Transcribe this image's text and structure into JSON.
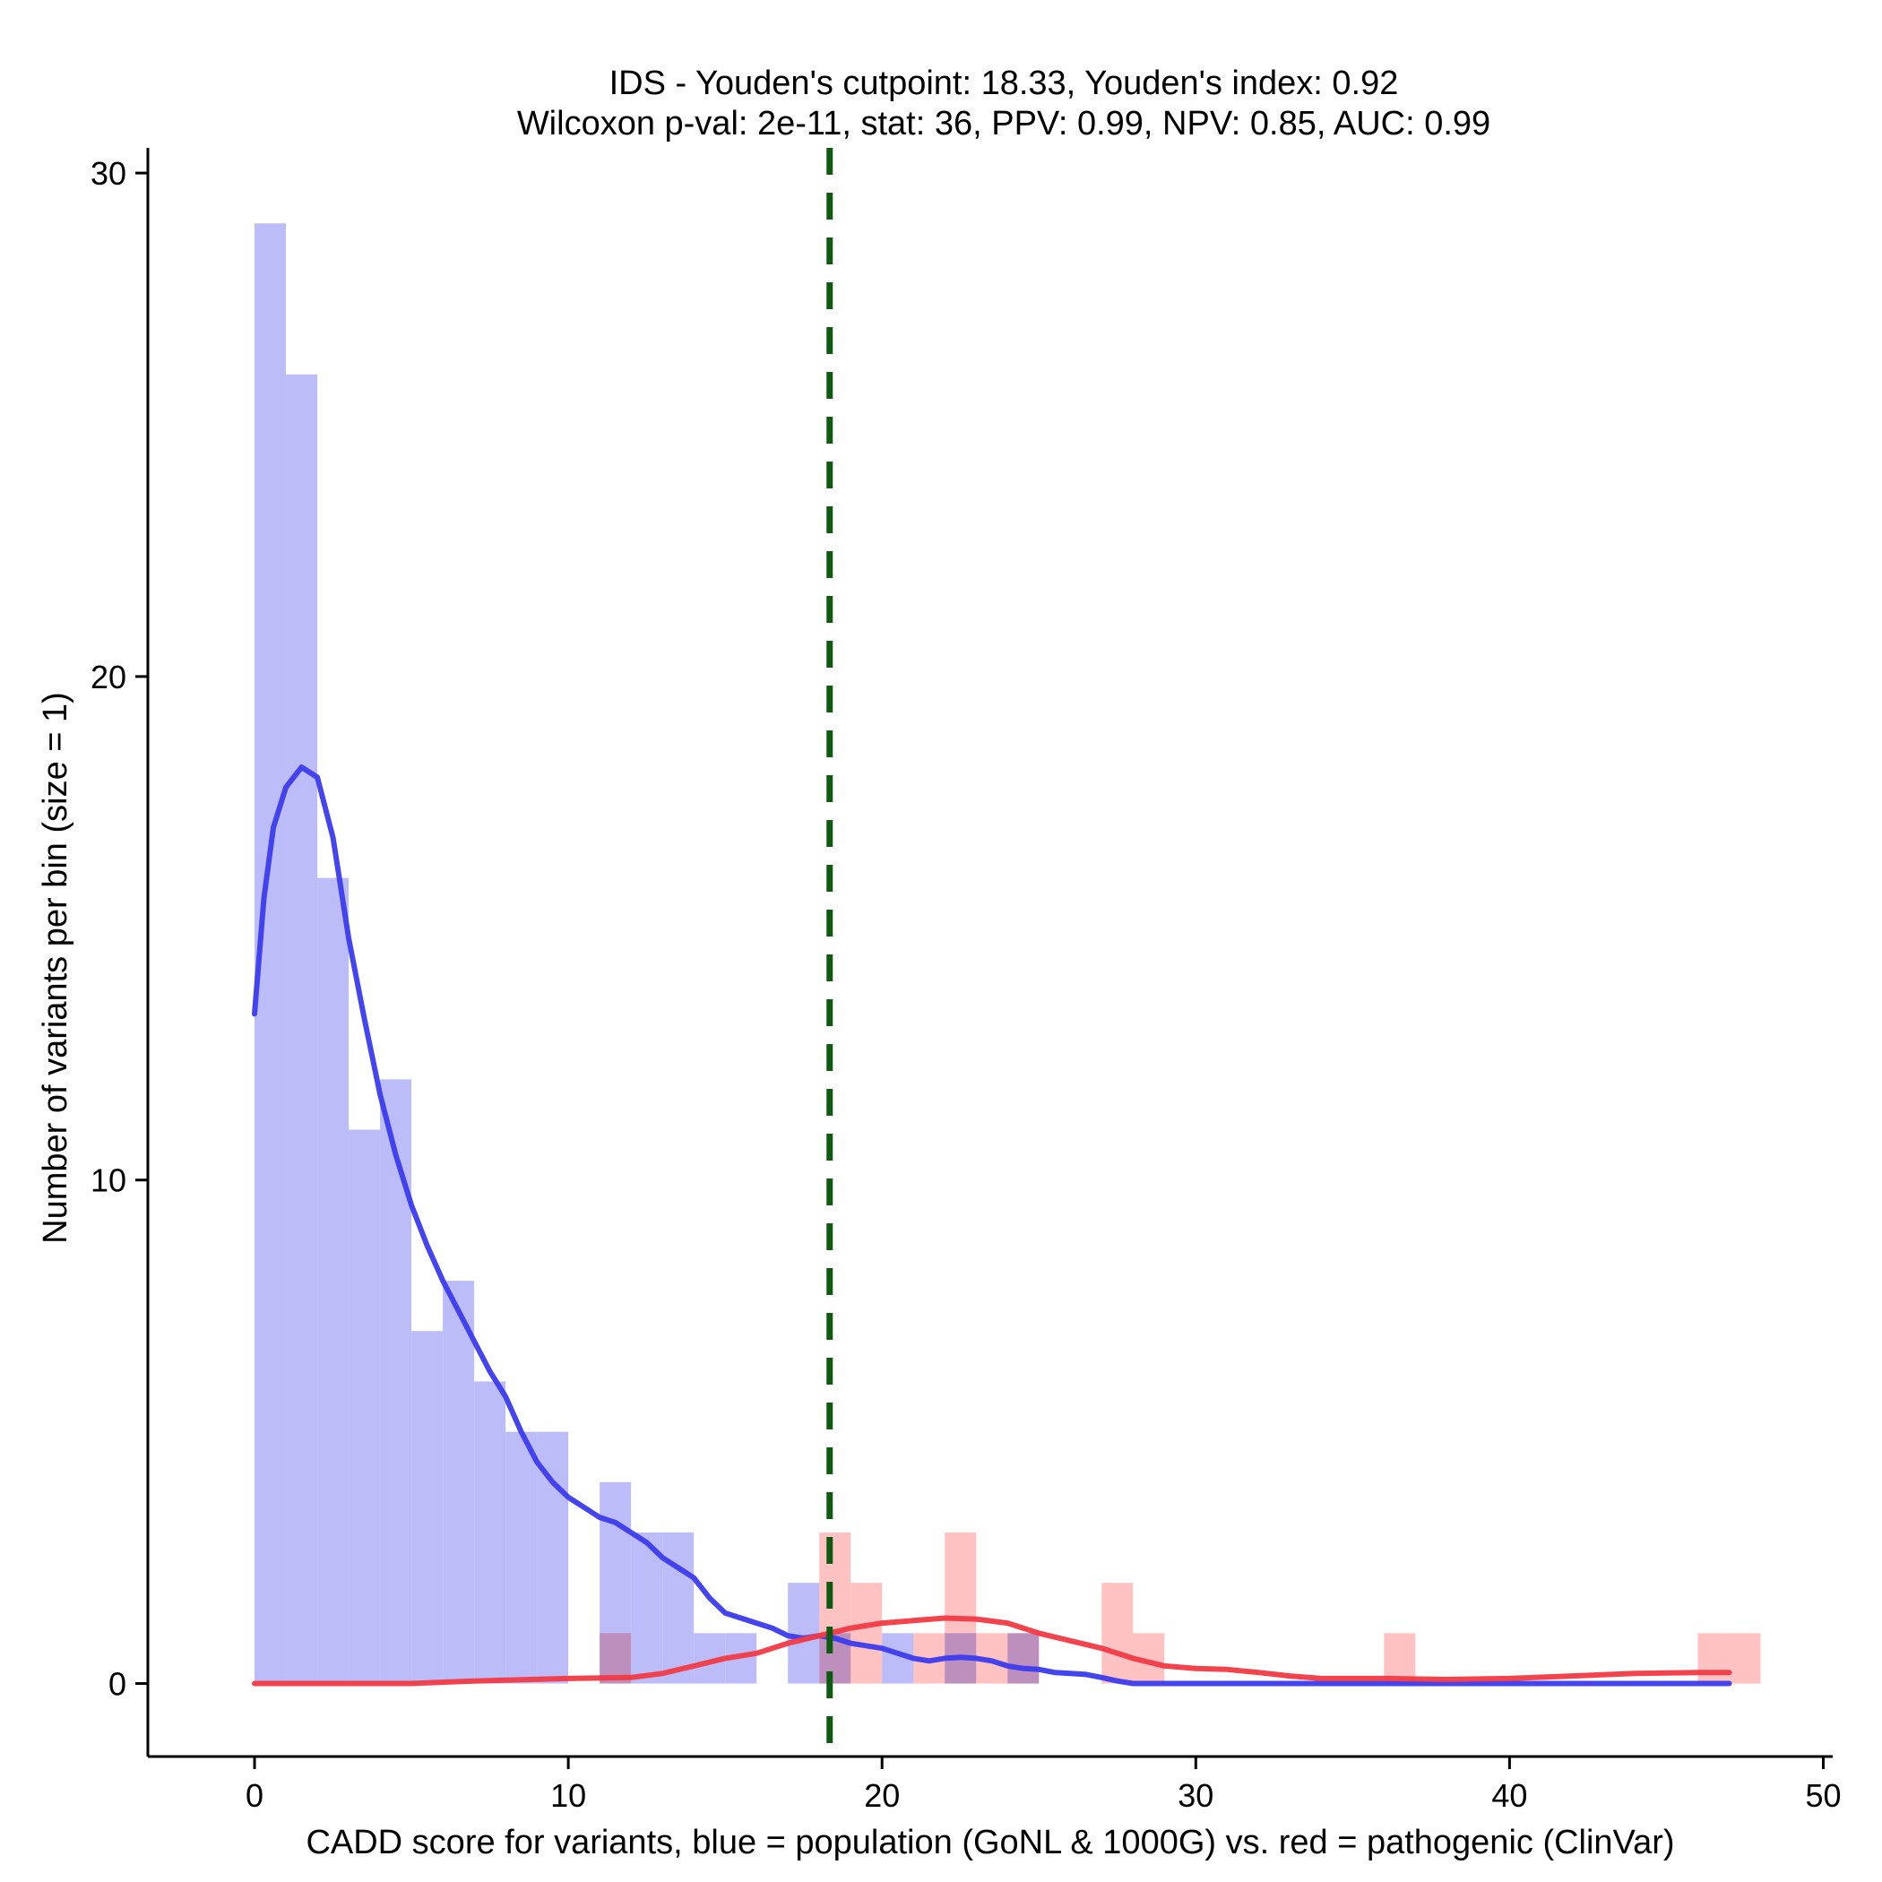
{
  "chart_data": {
    "type": "histogram",
    "title": "IDS - Youden's cutpoint: 18.33, Youden's index: 0.92",
    "subtitle": "Wilcoxon p-val: 2e-11, stat: 36, PPV: 0.99, NPV: 0.85, AUC: 0.99",
    "xlabel": "CADD score for variants, blue = population (GoNL & 1000G) vs. red = pathogenic (ClinVar)",
    "ylabel": "Number of variants per bin (size = 1)",
    "xlim": [
      -3.4,
      50.3
    ],
    "ylim": [
      -1.45,
      30.5
    ],
    "x_ticks": [
      0,
      10,
      20,
      30,
      40,
      50
    ],
    "y_ticks": [
      0,
      10,
      20,
      30
    ],
    "bin_size": 1,
    "cutpoint": 18.33,
    "colors": {
      "population_bar": "#bcbcf9",
      "pathogenic_bar": "#ffbfbf",
      "population_line": "#3b3bee",
      "pathogenic_line": "#f23a44",
      "cutpoint_line": "#0d5a10",
      "axis": "#000000"
    },
    "series": [
      {
        "name": "population",
        "bins": [
          {
            "x0": 0,
            "count": 29
          },
          {
            "x0": 1,
            "count": 26
          },
          {
            "x0": 2,
            "count": 16
          },
          {
            "x0": 3,
            "count": 11
          },
          {
            "x0": 4,
            "count": 12
          },
          {
            "x0": 5,
            "count": 7
          },
          {
            "x0": 6,
            "count": 8
          },
          {
            "x0": 7,
            "count": 6
          },
          {
            "x0": 8,
            "count": 5
          },
          {
            "x0": 9,
            "count": 5
          },
          {
            "x0": 11,
            "count": 4
          },
          {
            "x0": 12,
            "count": 3
          },
          {
            "x0": 13,
            "count": 3
          },
          {
            "x0": 14,
            "count": 1
          },
          {
            "x0": 15,
            "count": 1
          },
          {
            "x0": 17,
            "count": 2
          },
          {
            "x0": 18,
            "count": 1
          },
          {
            "x0": 20,
            "count": 1
          },
          {
            "x0": 22,
            "count": 1
          },
          {
            "x0": 24,
            "count": 1
          }
        ],
        "density_curve": [
          [
            0,
            13.3
          ],
          [
            0.3,
            15.6
          ],
          [
            0.6,
            17.0
          ],
          [
            1.0,
            17.8
          ],
          [
            1.5,
            18.2
          ],
          [
            2.0,
            18.0
          ],
          [
            2.5,
            16.8
          ],
          [
            3.0,
            14.8
          ],
          [
            3.5,
            13.2
          ],
          [
            4.0,
            11.7
          ],
          [
            4.5,
            10.5
          ],
          [
            5.0,
            9.5
          ],
          [
            5.5,
            8.7
          ],
          [
            6.0,
            8.0
          ],
          [
            6.5,
            7.4
          ],
          [
            7.0,
            6.8
          ],
          [
            7.5,
            6.2
          ],
          [
            8.0,
            5.7
          ],
          [
            8.5,
            5.0
          ],
          [
            9.0,
            4.4
          ],
          [
            9.5,
            4.0
          ],
          [
            10.0,
            3.7
          ],
          [
            10.5,
            3.5
          ],
          [
            11.0,
            3.3
          ],
          [
            11.5,
            3.2
          ],
          [
            12.0,
            3.0
          ],
          [
            12.5,
            2.8
          ],
          [
            13.0,
            2.5
          ],
          [
            13.5,
            2.3
          ],
          [
            14.0,
            2.1
          ],
          [
            14.5,
            1.7
          ],
          [
            15.0,
            1.4
          ],
          [
            15.5,
            1.3
          ],
          [
            16.0,
            1.2
          ],
          [
            16.5,
            1.1
          ],
          [
            17.0,
            0.95
          ],
          [
            17.5,
            0.9
          ],
          [
            18.0,
            0.95
          ],
          [
            18.5,
            0.9
          ],
          [
            19.0,
            0.8
          ],
          [
            19.5,
            0.75
          ],
          [
            20.0,
            0.7
          ],
          [
            20.5,
            0.6
          ],
          [
            21.0,
            0.5
          ],
          [
            21.5,
            0.45
          ],
          [
            22.0,
            0.5
          ],
          [
            22.5,
            0.52
          ],
          [
            23.0,
            0.5
          ],
          [
            23.5,
            0.45
          ],
          [
            24.0,
            0.35
          ],
          [
            24.5,
            0.3
          ],
          [
            25.0,
            0.28
          ],
          [
            25.5,
            0.22
          ],
          [
            26.0,
            0.2
          ],
          [
            26.5,
            0.18
          ],
          [
            27.0,
            0.12
          ],
          [
            27.5,
            0.05
          ],
          [
            28.0,
            0.0
          ],
          [
            30.0,
            0.0
          ],
          [
            35.0,
            0.0
          ],
          [
            40.0,
            0.0
          ],
          [
            45.0,
            0.0
          ],
          [
            47.0,
            0.0
          ]
        ]
      },
      {
        "name": "pathogenic",
        "bins": [
          {
            "x0": 11,
            "count": 1
          },
          {
            "x0": 18,
            "count": 3
          },
          {
            "x0": 19,
            "count": 2
          },
          {
            "x0": 21,
            "count": 1
          },
          {
            "x0": 22,
            "count": 3
          },
          {
            "x0": 23,
            "count": 1
          },
          {
            "x0": 24,
            "count": 1
          },
          {
            "x0": 27,
            "count": 2
          },
          {
            "x0": 28,
            "count": 1
          },
          {
            "x0": 36,
            "count": 1
          },
          {
            "x0": 46,
            "count": 1
          },
          {
            "x0": 47,
            "count": 1
          }
        ],
        "density_curve": [
          [
            0,
            0.0
          ],
          [
            5,
            0.0
          ],
          [
            7,
            0.05
          ],
          [
            10,
            0.1
          ],
          [
            12,
            0.12
          ],
          [
            13,
            0.2
          ],
          [
            14,
            0.35
          ],
          [
            15,
            0.5
          ],
          [
            16,
            0.6
          ],
          [
            17,
            0.8
          ],
          [
            18,
            0.95
          ],
          [
            19,
            1.1
          ],
          [
            20,
            1.2
          ],
          [
            21,
            1.25
          ],
          [
            22,
            1.3
          ],
          [
            23,
            1.28
          ],
          [
            24,
            1.2
          ],
          [
            25,
            1.0
          ],
          [
            26,
            0.85
          ],
          [
            27,
            0.7
          ],
          [
            28,
            0.5
          ],
          [
            29,
            0.35
          ],
          [
            30,
            0.3
          ],
          [
            31,
            0.28
          ],
          [
            32,
            0.22
          ],
          [
            33,
            0.15
          ],
          [
            34,
            0.1
          ],
          [
            36,
            0.1
          ],
          [
            38,
            0.08
          ],
          [
            40,
            0.1
          ],
          [
            42,
            0.15
          ],
          [
            44,
            0.2
          ],
          [
            46,
            0.22
          ],
          [
            47,
            0.22
          ]
        ]
      }
    ]
  }
}
